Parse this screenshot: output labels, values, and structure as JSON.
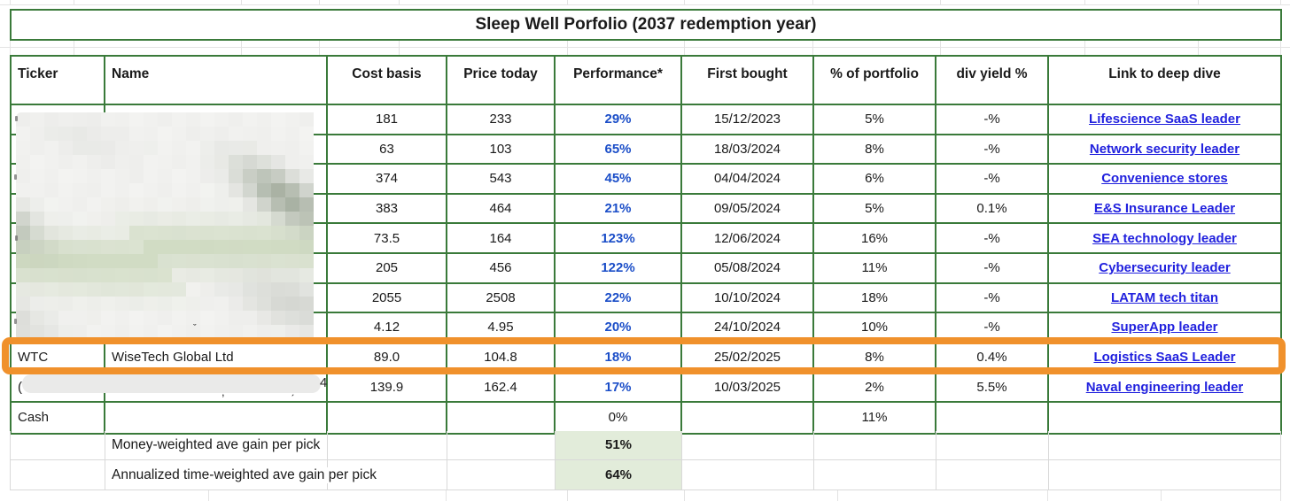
{
  "title": "Sleep Well Porfolio (2037 redemption year)",
  "columns": [
    {
      "key": "ticker",
      "label": "Ticker"
    },
    {
      "key": "name",
      "label": "Name"
    },
    {
      "key": "cost",
      "label": "Cost basis"
    },
    {
      "key": "price",
      "label": "Price today"
    },
    {
      "key": "perf",
      "label": "Performance*"
    },
    {
      "key": "bought",
      "label": "First bought"
    },
    {
      "key": "pct",
      "label": "% of portfolio"
    },
    {
      "key": "yield",
      "label": "div yield %"
    },
    {
      "key": "link",
      "label": "Link to deep dive"
    }
  ],
  "rows": [
    {
      "ticker": "",
      "name": "",
      "cost": "181",
      "price": "233",
      "perf": "29%",
      "bought": "15/12/2023",
      "pct": "5%",
      "yield": "-%",
      "link": "Lifescience SaaS leader",
      "redacted": "blur"
    },
    {
      "ticker": "",
      "name": "",
      "cost": "63",
      "price": "103",
      "perf": "65%",
      "bought": "18/03/2024",
      "pct": "8%",
      "yield": "-%",
      "link": "Network security leader",
      "redacted": "blur"
    },
    {
      "ticker": "",
      "name": "",
      "cost": "374",
      "price": "543",
      "perf": "45%",
      "bought": "04/04/2024",
      "pct": "6%",
      "yield": "-%",
      "link": "Convenience stores",
      "redacted": "blur"
    },
    {
      "ticker": "",
      "name": "",
      "cost": "383",
      "price": "464",
      "perf": "21%",
      "bought": "09/05/2024",
      "pct": "5%",
      "yield": "0.1%",
      "link": "E&S Insurance Leader",
      "redacted": "blur"
    },
    {
      "ticker": "",
      "name": "",
      "cost": "73.5",
      "price": "164",
      "perf": "123%",
      "bought": "12/06/2024",
      "pct": "16%",
      "yield": "-%",
      "link": "SEA technology leader",
      "redacted": "blur"
    },
    {
      "ticker": "",
      "name": "",
      "cost": "205",
      "price": "456",
      "perf": "122%",
      "bought": "05/08/2024",
      "pct": "11%",
      "yield": "-%",
      "link": "Cybersecurity leader",
      "redacted": "blur"
    },
    {
      "ticker": "",
      "name": "",
      "cost": "2055",
      "price": "2508",
      "perf": "22%",
      "bought": "10/10/2024",
      "pct": "18%",
      "yield": "-%",
      "link": "LATAM tech titan",
      "redacted": "blur"
    },
    {
      "ticker": "",
      "name": "",
      "cost": "4.12",
      "price": "4.95",
      "perf": "20%",
      "bought": "24/10/2024",
      "pct": "10%",
      "yield": "-%",
      "link": "SuperApp leader",
      "redacted": "blur"
    },
    {
      "ticker": "WTC",
      "name": "WiseTech Global Ltd",
      "cost": "89.0",
      "price": "104.8",
      "perf": "18%",
      "bought": "25/02/2025",
      "pct": "8%",
      "yield": "0.4%",
      "link": "Logistics SaaS Leader",
      "highlighted": true
    },
    {
      "ticker": "(",
      "name": "",
      "cost": "139.9",
      "price": "162.4",
      "perf": "17%",
      "bought": "10/03/2025",
      "pct": "2%",
      "yield": "5.5%",
      "link": "Naval engineering leader",
      "redacted": "bar",
      "trailing_fragment": "4"
    },
    {
      "ticker": "Cash",
      "name": "",
      "cost": "",
      "price": "",
      "perf": "0%",
      "bought": "",
      "pct": "11%",
      "yield": "",
      "link": "",
      "perf_plain": true
    }
  ],
  "summary": [
    {
      "label": "Money-weighted ave gain per pick",
      "value": "51%"
    },
    {
      "label": "Annualized time-weighted ave gain per pick",
      "value": "64%"
    }
  ],
  "colors": {
    "table_border_green": "#3A7A3A",
    "gridline_gray": "#D9D9D9",
    "link_blue": "#2121DE",
    "performance_blue": "#1B4EC8",
    "highlight_orange": "#F0912C",
    "summary_cell_green": "#E2ECDA"
  }
}
